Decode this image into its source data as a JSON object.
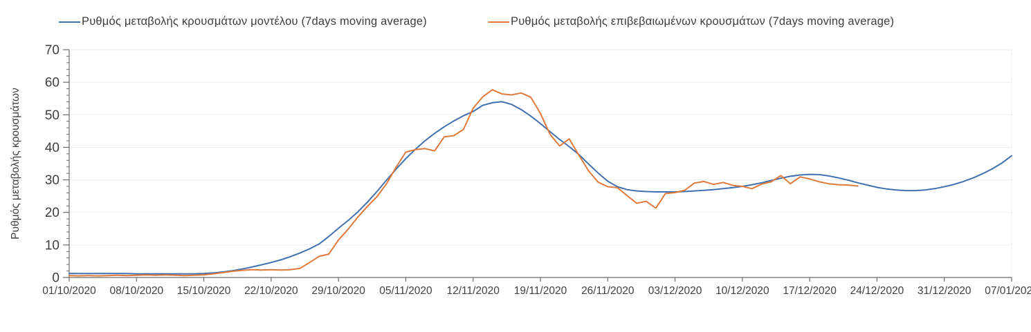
{
  "chart_data": {
    "type": "line",
    "title": "",
    "ylabel": "Ρυθμός μεταβολής κρουσμάτων",
    "xlabel": "",
    "ylim": [
      0,
      70
    ],
    "y_tick_values": [
      0,
      10,
      20,
      30,
      40,
      50,
      60,
      70
    ],
    "y_minor_step": 2,
    "grid": "horizontal",
    "grid_color": "#ebebeb",
    "axis_color": "#6b6b6b",
    "legend_position": "top",
    "x_unit": "days since 01/10/2020",
    "x_range_days": [
      0,
      98
    ],
    "x_tick_days": [
      0,
      7,
      14,
      21,
      28,
      35,
      42,
      49,
      56,
      63,
      70,
      77,
      84,
      91,
      98
    ],
    "x_tick_labels": [
      "01/10/2020",
      "08/10/2020",
      "15/10/2020",
      "22/10/2020",
      "29/10/2020",
      "05/11/2020",
      "12/11/2020",
      "19/11/2020",
      "26/11/2020",
      "03/12/2020",
      "10/12/2020",
      "17/12/2020",
      "24/12/2020",
      "31/12/2020",
      "07/01/2021"
    ],
    "series": [
      {
        "name": "Ρυθμός μεταβολής κρουσμάτων μοντέλου (7days moving average)",
        "color": "#4170af",
        "start_day": 0,
        "values": [
          1.2,
          1.2,
          1.2,
          1.2,
          1.2,
          1.2,
          1.2,
          1.1,
          1.1,
          1.1,
          1.1,
          1.1,
          1.1,
          1.1,
          1.2,
          1.4,
          1.7,
          2.1,
          2.6,
          3.2,
          3.9,
          4.6,
          5.4,
          6.4,
          7.5,
          8.8,
          10.3,
          12.6,
          15.1,
          17.5,
          20.1,
          23.1,
          26.4,
          29.9,
          33.3,
          36.5,
          39.4,
          42.0,
          44.3,
          46.3,
          48.1,
          49.7,
          51.0,
          52.9,
          53.7,
          54.0,
          53.2,
          51.6,
          49.6,
          47.3,
          44.8,
          42.4,
          40.2,
          37.8,
          34.9,
          32.1,
          29.6,
          27.9,
          27.0,
          26.6,
          26.4,
          26.3,
          26.3,
          26.3,
          26.4,
          26.6,
          26.8,
          27.0,
          27.3,
          27.6,
          28.0,
          28.5,
          29.1,
          29.8,
          30.5,
          31.1,
          31.5,
          31.7,
          31.6,
          31.2,
          30.6,
          29.9,
          29.1,
          28.4,
          27.7,
          27.2,
          26.9,
          26.7,
          26.7,
          26.9,
          27.3,
          27.9,
          28.6,
          29.5,
          30.6,
          31.9,
          33.4,
          35.2,
          37.4
        ]
      },
      {
        "name": "Ρυθμός μεταβολής επιβεβαιωμένων κρουσμάτων (7days moving average)",
        "color": "#e0793a",
        "start_day": 0,
        "values": [
          0.6,
          0.5,
          0.6,
          0.5,
          0.6,
          0.7,
          0.6,
          0.7,
          0.8,
          0.7,
          0.8,
          0.7,
          0.6,
          0.7,
          0.8,
          1.1,
          1.5,
          1.9,
          2.2,
          2.4,
          2.3,
          2.4,
          2.3,
          2.4,
          2.8,
          4.6,
          6.5,
          7.2,
          11.5,
          14.8,
          18.5,
          21.8,
          24.8,
          28.8,
          33.9,
          38.5,
          39.3,
          39.6,
          38.9,
          43.2,
          43.6,
          45.5,
          52.0,
          55.5,
          57.7,
          56.4,
          56.1,
          56.7,
          55.4,
          50.4,
          44.0,
          40.4,
          42.6,
          37.6,
          32.8,
          29.3,
          27.9,
          27.6,
          25.2,
          22.8,
          23.4,
          21.3,
          25.8,
          26.1,
          26.8,
          29.0,
          29.5,
          28.6,
          29.2,
          28.3,
          28.0,
          27.3,
          28.7,
          29.4,
          31.3,
          28.8,
          30.9,
          30.3,
          29.4,
          28.8,
          28.5,
          28.4,
          28.1
        ]
      }
    ]
  },
  "legend": {
    "item1_label": "Ρυθμός μεταβολής κρουσμάτων μοντέλου (7days moving average)",
    "item2_label": "Ρυθμός μεταβολής επιβεβαιωμένων κρουσμάτων (7days moving average)"
  }
}
